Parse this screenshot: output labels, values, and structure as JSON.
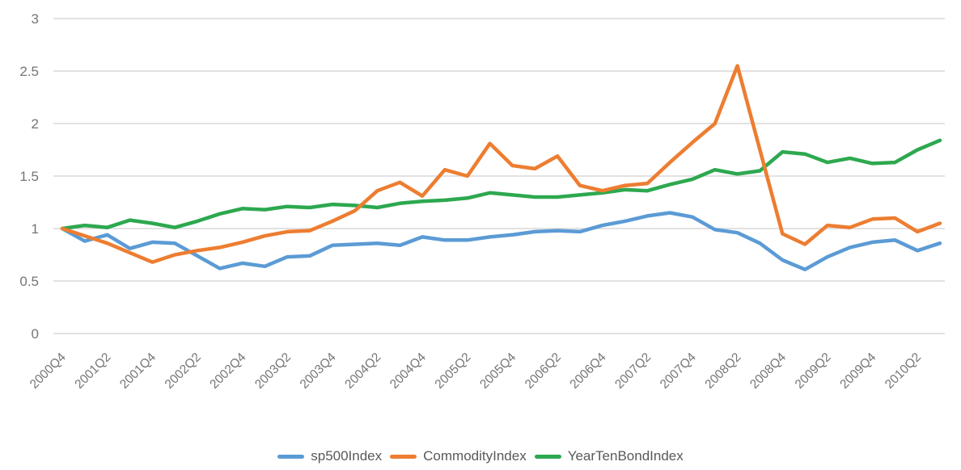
{
  "figure": {
    "background": "#ffffff",
    "gridline_color": "#d9d9d9",
    "axis_label_color": "#757575",
    "legend_text_color": "#595959"
  },
  "chart_data": {
    "type": "line",
    "title": "",
    "xlabel": "",
    "ylabel": "",
    "grid": true,
    "legend_position": "bottom",
    "ylim": [
      0,
      3
    ],
    "yticks": [
      0,
      0.5,
      1,
      1.5,
      2,
      2.5,
      3
    ],
    "x_tick_label_every": 2,
    "x": [
      "2000Q4",
      "2001Q1",
      "2001Q2",
      "2001Q3",
      "2001Q4",
      "2002Q1",
      "2002Q2",
      "2002Q3",
      "2002Q4",
      "2003Q1",
      "2003Q2",
      "2003Q3",
      "2003Q4",
      "2004Q1",
      "2004Q2",
      "2004Q3",
      "2004Q4",
      "2005Q1",
      "2005Q2",
      "2005Q3",
      "2005Q4",
      "2006Q1",
      "2006Q2",
      "2006Q3",
      "2006Q4",
      "2007Q1",
      "2007Q2",
      "2007Q3",
      "2007Q4",
      "2008Q1",
      "2008Q2",
      "2008Q3",
      "2008Q4",
      "2009Q1",
      "2009Q2",
      "2009Q3",
      "2009Q4",
      "2010Q1",
      "2010Q2",
      "2010Q3"
    ],
    "x_labels_shown": [
      "2000Q4",
      "2001Q2",
      "2001Q4",
      "2002Q2",
      "2002Q4",
      "2003Q2",
      "2003Q4",
      "2004Q2",
      "2004Q4",
      "2005Q2",
      "2005Q4",
      "2006Q2",
      "2006Q4",
      "2007Q2",
      "2007Q4",
      "2008Q2",
      "2008Q4",
      "2009Q2",
      "2009Q4",
      "2010Q2"
    ],
    "series": [
      {
        "name": "sp500Index",
        "color": "#5B9BD5",
        "values": [
          1.0,
          0.88,
          0.94,
          0.81,
          0.87,
          0.86,
          0.74,
          0.62,
          0.67,
          0.64,
          0.73,
          0.74,
          0.84,
          0.85,
          0.86,
          0.84,
          0.92,
          0.89,
          0.89,
          0.92,
          0.94,
          0.97,
          0.98,
          0.97,
          1.03,
          1.07,
          1.12,
          1.15,
          1.11,
          0.99,
          0.96,
          0.86,
          0.7,
          0.61,
          0.73,
          0.82,
          0.87,
          0.89,
          0.79,
          0.86
        ]
      },
      {
        "name": "CommodityIndex",
        "color": "#ED7D31",
        "values": [
          1.0,
          0.93,
          0.86,
          0.77,
          0.68,
          0.75,
          0.79,
          0.82,
          0.87,
          0.93,
          0.97,
          0.98,
          1.07,
          1.17,
          1.36,
          1.44,
          1.31,
          1.56,
          1.5,
          1.81,
          1.6,
          1.57,
          1.69,
          1.41,
          1.36,
          1.41,
          1.43,
          1.63,
          1.82,
          2.0,
          2.55,
          1.75,
          0.95,
          0.85,
          1.03,
          1.01,
          1.09,
          1.1,
          0.97,
          1.05
        ]
      },
      {
        "name": "YearTenBondIndex",
        "color": "#2DA84F",
        "values": [
          1.0,
          1.03,
          1.01,
          1.08,
          1.05,
          1.01,
          1.07,
          1.14,
          1.19,
          1.18,
          1.21,
          1.2,
          1.23,
          1.22,
          1.2,
          1.24,
          1.26,
          1.27,
          1.29,
          1.34,
          1.32,
          1.3,
          1.3,
          1.32,
          1.34,
          1.37,
          1.36,
          1.42,
          1.47,
          1.56,
          1.52,
          1.55,
          1.73,
          1.71,
          1.63,
          1.67,
          1.62,
          1.63,
          1.75,
          1.84
        ]
      }
    ]
  }
}
